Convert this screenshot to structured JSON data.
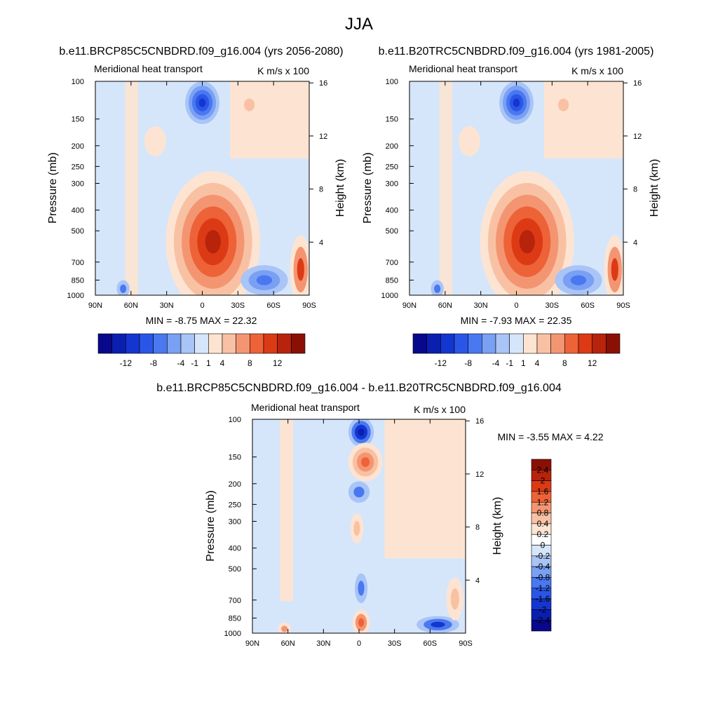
{
  "page": {
    "title": "JJA"
  },
  "chart_data": [
    {
      "type": "heatmap",
      "id": "future",
      "title": "b.e11.BRCP85C5CNBDRD.f09_g16.004 (yrs 2056-2080)",
      "left_string": "Meridional heat transport",
      "right_string": "K m/s x 100",
      "ylabel": "Pressure (mb)",
      "y2label": "Height (km)",
      "x_ticks": [
        "90N",
        "60N",
        "30N",
        "0",
        "30S",
        "60S",
        "90S"
      ],
      "y_ticks": [
        "100",
        "150",
        "200",
        "250",
        "300",
        "400",
        "500",
        "700",
        "850",
        "1000"
      ],
      "y2_ticks": [
        "16",
        "12",
        "8",
        "4"
      ],
      "stats": {
        "min": "-8.75",
        "max": "22.32"
      },
      "stats_text": "MIN =  -8.75  MAX =  22.32",
      "colorbar": {
        "orientation": "horizontal",
        "labels": [
          "-12",
          "-8",
          "-4",
          "-1",
          "1",
          "4",
          "8",
          "12"
        ],
        "levels": [
          -12,
          -10,
          -8,
          -6,
          -4,
          -2,
          -1,
          0,
          1,
          2,
          4,
          6,
          8,
          10,
          12
        ]
      }
    },
    {
      "type": "heatmap",
      "id": "historical",
      "title": "b.e11.B20TRC5CNBDRD.f09_g16.004 (yrs 1981-2005)",
      "left_string": "Meridional heat transport",
      "right_string": "K m/s x 100",
      "ylabel": "Pressure (mb)",
      "y2label": "Height (km)",
      "x_ticks": [
        "90N",
        "60N",
        "30N",
        "0",
        "30S",
        "60S",
        "90S"
      ],
      "y_ticks": [
        "100",
        "150",
        "200",
        "250",
        "300",
        "400",
        "500",
        "700",
        "850",
        "1000"
      ],
      "y2_ticks": [
        "16",
        "12",
        "8",
        "4"
      ],
      "stats": {
        "min": "-7.93",
        "max": "22.35"
      },
      "stats_text": "MIN =  -7.93  MAX =  22.35",
      "colorbar": {
        "orientation": "horizontal",
        "labels": [
          "-12",
          "-8",
          "-4",
          "-1",
          "1",
          "4",
          "8",
          "12"
        ],
        "levels": [
          -12,
          -10,
          -8,
          -6,
          -4,
          -2,
          -1,
          0,
          1,
          2,
          4,
          6,
          8,
          10,
          12
        ]
      }
    },
    {
      "type": "heatmap",
      "id": "difference",
      "title": "b.e11.BRCP85C5CNBDRD.f09_g16.004 - b.e11.B20TRC5CNBDRD.f09_g16.004",
      "left_string": "Meridional heat transport",
      "right_string": "K m/s x 100",
      "ylabel": "Pressure (mb)",
      "y2label": "Height (km)",
      "x_ticks": [
        "90N",
        "60N",
        "30N",
        "0",
        "30S",
        "60S",
        "90S"
      ],
      "y_ticks": [
        "100",
        "150",
        "200",
        "250",
        "300",
        "400",
        "500",
        "700",
        "850",
        "1000"
      ],
      "y2_ticks": [
        "16",
        "12",
        "8",
        "4"
      ],
      "stats": {
        "min": "-3.55",
        "max": "4.22"
      },
      "stats_text": "MIN =  -3.55  MAX =   4.22",
      "colorbar": {
        "orientation": "vertical",
        "labels": [
          "2.4",
          "2",
          "1.6",
          "1.2",
          "0.8",
          "0.4",
          "0.2",
          "0",
          "-0.2",
          "-0.4",
          "-0.8",
          "-1.2",
          "-1.6",
          "-2",
          "-2.4"
        ],
        "levels": [
          -2.4,
          -2,
          -1.6,
          -1.2,
          -0.8,
          -0.4,
          -0.2,
          0,
          0.2,
          0.4,
          0.8,
          1.2,
          1.6,
          2,
          2.4
        ]
      }
    }
  ],
  "palette": [
    "#08088c",
    "#0a1fb0",
    "#1436d0",
    "#2a56e8",
    "#4a78f0",
    "#7aa0f4",
    "#a9c4f6",
    "#d6e6fa",
    "#fde4d2",
    "#f9c1a3",
    "#f49572",
    "#ee6238",
    "#dc3a15",
    "#b8230c",
    "#8a1005"
  ],
  "palette_diff": [
    "#8a1005",
    "#b8230c",
    "#dc3a15",
    "#ee6238",
    "#f49572",
    "#f9c1a3",
    "#fde4d2",
    "#ffffff",
    "#d6e6fa",
    "#a9c4f6",
    "#7aa0f4",
    "#4a78f0",
    "#2a56e8",
    "#1436d0",
    "#0a1fb0",
    "#08088c"
  ]
}
